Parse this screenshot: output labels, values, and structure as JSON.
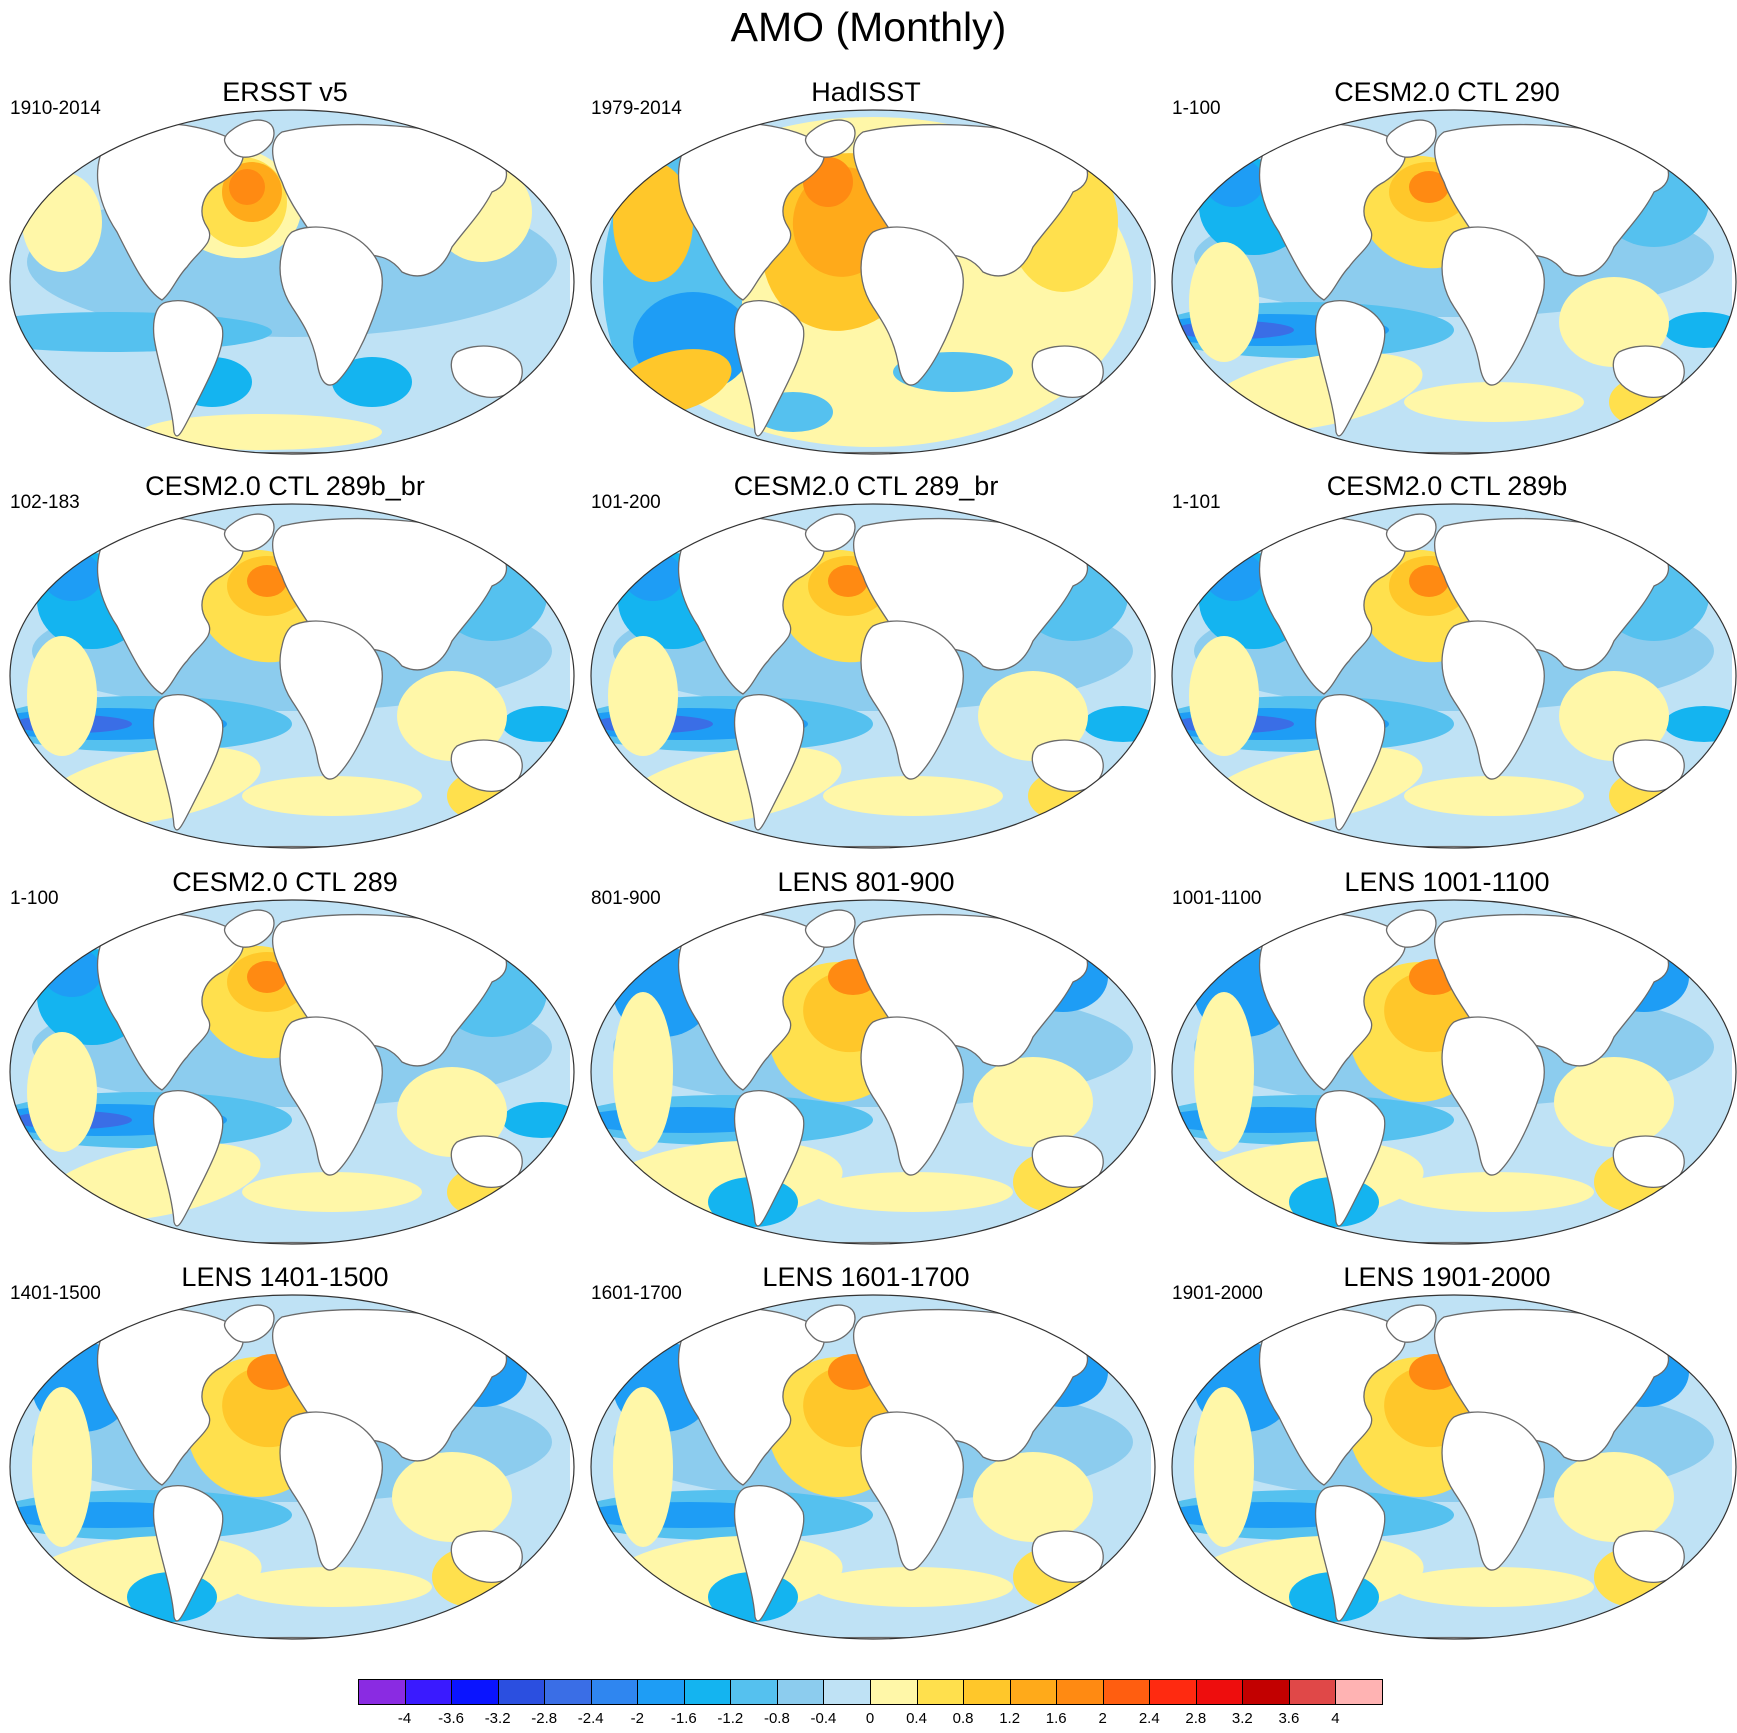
{
  "figure": {
    "title": "AMO (Monthly)"
  },
  "panels": [
    {
      "title": "ERSST v5",
      "period": "1910-2014",
      "pattern": "ersst"
    },
    {
      "title": "HadISST",
      "period": "1979-2014",
      "pattern": "hadisst"
    },
    {
      "title": "CESM2.0 CTL 290",
      "period": "1-100",
      "pattern": "model"
    },
    {
      "title": "CESM2.0 CTL 289b_br",
      "period": "102-183",
      "pattern": "model"
    },
    {
      "title": "CESM2.0 CTL 289_br",
      "period": "101-200",
      "pattern": "model"
    },
    {
      "title": "CESM2.0 CTL 289b",
      "period": "1-101",
      "pattern": "model"
    },
    {
      "title": "CESM2.0 CTL 289",
      "period": "1-100",
      "pattern": "model"
    },
    {
      "title": "LENS 801-900",
      "period": "801-900",
      "pattern": "lens"
    },
    {
      "title": "LENS 1001-1100",
      "period": "1001-1100",
      "pattern": "lens"
    },
    {
      "title": "LENS 1401-1500",
      "period": "1401-1500",
      "pattern": "lens"
    },
    {
      "title": "LENS 1601-1700",
      "period": "1601-1700",
      "pattern": "lens"
    },
    {
      "title": "LENS 1901-2000",
      "period": "1901-2000",
      "pattern": "lens"
    }
  ],
  "colorbar": {
    "labels": [
      "-4",
      "-3.6",
      "-3.2",
      "-2.8",
      "-2.4",
      "-2",
      "-1.6",
      "-1.2",
      "-0.8",
      "-0.4",
      "0",
      "0.4",
      "0.8",
      "1.2",
      "1.6",
      "2",
      "2.4",
      "2.8",
      "3.2",
      "3.6",
      "4"
    ],
    "colors": [
      "#8a2be2",
      "#3a1aff",
      "#0a14ff",
      "#2b4fe0",
      "#3a6ee6",
      "#2f86f0",
      "#1e9df5",
      "#14b4f0",
      "#55c1ef",
      "#8cccee",
      "#bfe2f5",
      "#fff7a8",
      "#ffe04d",
      "#ffc72a",
      "#ffaa1a",
      "#ff8a12",
      "#ff5e10",
      "#ff2a10",
      "#ee0d0d",
      "#c20000",
      "#e04848",
      "#ffb3b3"
    ]
  },
  "map": {
    "land_color": "#ffffff",
    "coast_color": "#6a6a6a",
    "ocean_base_color": "#bfe2f5"
  }
}
